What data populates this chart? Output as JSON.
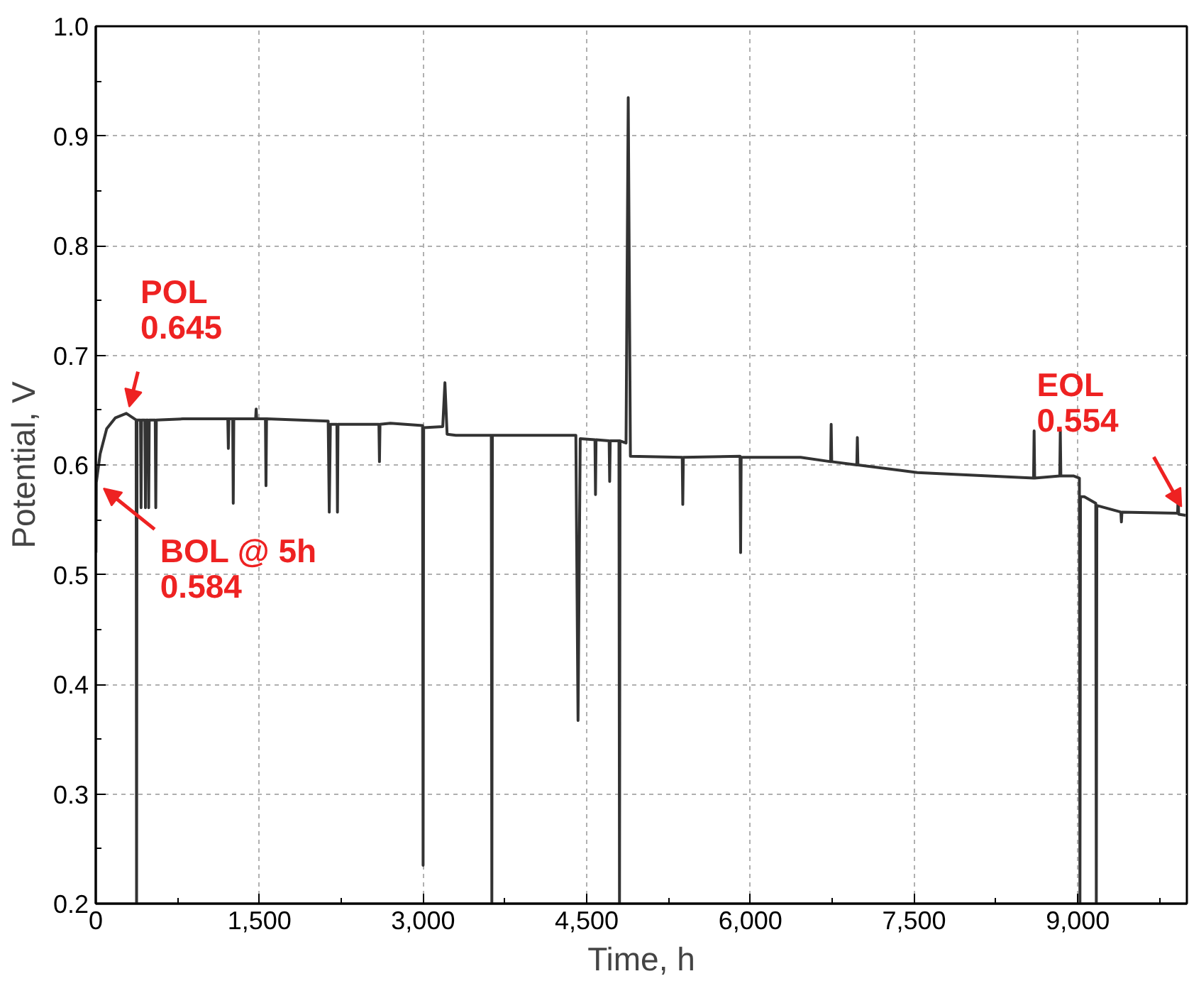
{
  "chart_data": {
    "type": "line",
    "xlabel": "Time, h",
    "ylabel": "Potential, V",
    "x": [
      2,
      5,
      40,
      100,
      180,
      280,
      370,
      374,
      378,
      410,
      415,
      420,
      450,
      455,
      460,
      480,
      485,
      490,
      545,
      550,
      555,
      800,
      1210,
      1215,
      1220,
      1255,
      1260,
      1265,
      1465,
      1470,
      1475,
      1555,
      1560,
      1565,
      2130,
      2140,
      2150,
      2210,
      2215,
      2220,
      2595,
      2600,
      2605,
      2700,
      2995,
      3000,
      3005,
      3180,
      3200,
      3220,
      3300,
      3625,
      3630,
      3635,
      4400,
      4420,
      4440,
      4575,
      4580,
      4585,
      4705,
      4710,
      4715,
      4795,
      4800,
      4805,
      4860,
      4880,
      4900,
      5375,
      5380,
      5385,
      5905,
      5910,
      5915,
      6460,
      6735,
      6740,
      6745,
      6975,
      6980,
      6985,
      7530,
      8595,
      8600,
      8605,
      8835,
      8840,
      8845,
      8960,
      9015,
      9020,
      9025,
      9060,
      9165,
      9170,
      9175,
      9360,
      9395,
      9400,
      9405,
      9915,
      9920,
      9925,
      9990
    ],
    "series": [
      {
        "color": "#333333",
        "values": [
          0.52,
          0.584,
          0.61,
          0.633,
          0.643,
          0.647,
          0.641,
          0.2,
          0.641,
          0.641,
          0.561,
          0.641,
          0.641,
          0.561,
          0.641,
          0.641,
          0.561,
          0.641,
          0.641,
          0.561,
          0.641,
          0.642,
          0.642,
          0.615,
          0.642,
          0.642,
          0.565,
          0.642,
          0.642,
          0.651,
          0.642,
          0.642,
          0.581,
          0.642,
          0.64,
          0.557,
          0.637,
          0.637,
          0.557,
          0.637,
          0.637,
          0.603,
          0.637,
          0.638,
          0.636,
          0.235,
          0.634,
          0.635,
          0.675,
          0.628,
          0.627,
          0.627,
          0.2,
          0.627,
          0.627,
          0.367,
          0.624,
          0.623,
          0.573,
          0.623,
          0.622,
          0.585,
          0.622,
          0.622,
          0.2,
          0.622,
          0.62,
          0.935,
          0.608,
          0.607,
          0.564,
          0.607,
          0.608,
          0.52,
          0.607,
          0.607,
          0.603,
          0.637,
          0.603,
          0.6,
          0.625,
          0.6,
          0.593,
          0.588,
          0.631,
          0.588,
          0.59,
          0.631,
          0.59,
          0.59,
          0.588,
          0.2,
          0.571,
          0.571,
          0.565,
          0.2,
          0.563,
          0.558,
          0.557,
          0.548,
          0.557,
          0.556,
          0.571,
          0.555,
          0.554
        ]
      }
    ],
    "xlim": [
      0,
      10000
    ],
    "ylim": [
      0.2,
      1.0
    ],
    "xticks": [
      0,
      {
        "value": 750,
        "label": null
      },
      {
        "value": 1500,
        "label": "1,500"
      },
      {
        "value": 2250,
        "label": null
      },
      {
        "value": 3000,
        "label": "3,000"
      },
      {
        "value": 3750,
        "label": null
      },
      {
        "value": 4500,
        "label": "4,500"
      },
      {
        "value": 5250,
        "label": null
      },
      {
        "value": 6000,
        "label": "6,000"
      },
      {
        "value": 6750,
        "label": null
      },
      {
        "value": 7500,
        "label": "7,500"
      },
      {
        "value": 8250,
        "label": null
      },
      {
        "value": 9000,
        "label": "9,000"
      },
      {
        "value": 9750,
        "label": null
      }
    ],
    "yticks": [
      {
        "value": 0.2,
        "label": "0.2"
      },
      {
        "value": 0.25,
        "label": null
      },
      {
        "value": 0.3,
        "label": "0.3"
      },
      {
        "value": 0.35,
        "label": null
      },
      {
        "value": 0.4,
        "label": "0.4"
      },
      {
        "value": 0.45,
        "label": null
      },
      {
        "value": 0.5,
        "label": "0.5"
      },
      {
        "value": 0.55,
        "label": null
      },
      {
        "value": 0.6,
        "label": "0.6"
      },
      {
        "value": 0.65,
        "label": null
      },
      {
        "value": 0.7,
        "label": "0.7"
      },
      {
        "value": 0.75,
        "label": null
      },
      {
        "value": 0.8,
        "label": "0.8"
      },
      {
        "value": 0.85,
        "label": null
      },
      {
        "value": 0.9,
        "label": "0.9"
      },
      {
        "value": 0.95,
        "label": null
      },
      {
        "value": 1.0,
        "label": "1.0"
      }
    ],
    "grid": true,
    "line_style": "solid",
    "marker": "none",
    "annotations": [
      {
        "text": "POL\n0.645",
        "x": 280,
        "y": 0.645
      },
      {
        "text": "BOL  @ 5h\n0.584",
        "x": 5,
        "y": 0.584
      },
      {
        "text": "EOL\n0.554",
        "x": 9990,
        "y": 0.554
      }
    ]
  }
}
